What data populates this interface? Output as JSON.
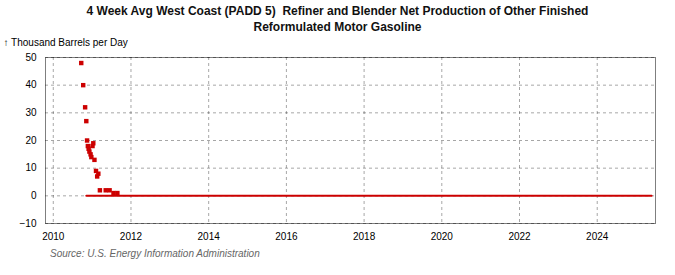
{
  "chart_data": {
    "type": "scatter",
    "title": "4 Week Avg West Coast (PADD 5)  Refiner and Blender Net Production of Other Finished\nReformulated Motor Gasoline",
    "ylabel": "Thousand Barrels per Day",
    "source": "Source: U.S. Energy Information Administration",
    "xlim": [
      2009.8,
      2025.5
    ],
    "xticks": [
      2010,
      2012,
      2014,
      2016,
      2018,
      2020,
      2022,
      2024
    ],
    "ylim": [
      -10,
      50
    ],
    "yticks": [
      -10,
      0,
      10,
      20,
      30,
      40,
      50
    ],
    "grid": true,
    "series": [
      {
        "type": "scatter",
        "marker": "square",
        "color": "#cc0000",
        "x": [
          2010.72,
          2010.77,
          2010.82,
          2010.85,
          2010.87,
          2010.89,
          2010.91,
          2010.93,
          2010.96,
          2010.98,
          2011.01,
          2011.03,
          2011.06,
          2011.1,
          2011.13,
          2011.16,
          2011.2,
          2011.35,
          2011.45,
          2011.55,
          2011.65
        ],
        "values": [
          48,
          40,
          32,
          27,
          20,
          18,
          17,
          16,
          15,
          14,
          18,
          19,
          13,
          9,
          7,
          8,
          2,
          2,
          2,
          1,
          1
        ]
      },
      {
        "type": "line",
        "color": "#cc0000",
        "x": [
          2010.85,
          2025.4
        ],
        "values": [
          0,
          0
        ]
      }
    ]
  }
}
